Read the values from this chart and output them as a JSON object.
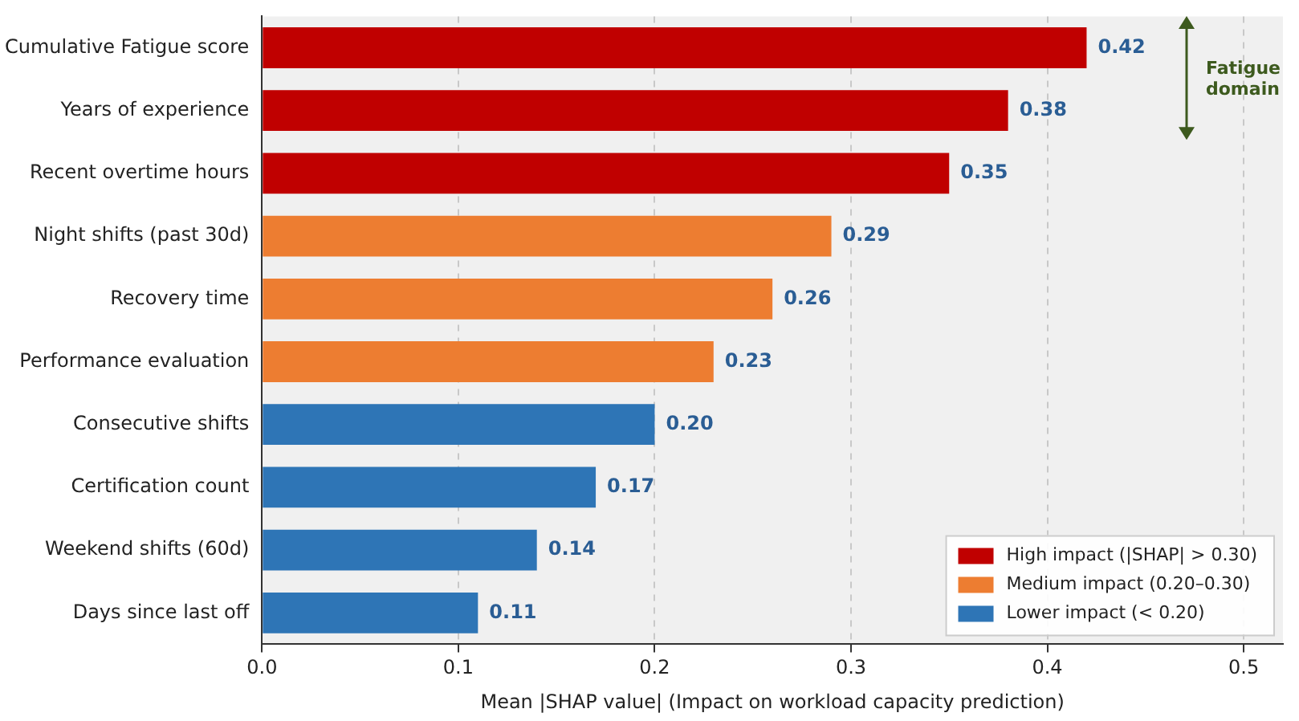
{
  "chart_data": {
    "type": "bar",
    "orientation": "horizontal",
    "categories": [
      "Cumulative Fatigue score",
      "Years of experience",
      "Recent overtime hours",
      "Night shifts (past 30d)",
      "Recovery time",
      "Performance evaluation",
      "Consecutive shifts",
      "Certification count",
      "Weekend shifts (60d)",
      "Days since last off"
    ],
    "series": [
      {
        "name": "High impact (|SHAP| > 0.30)",
        "color": "#c00000",
        "values": [
          0.42,
          0.38,
          0.35,
          null,
          null,
          null,
          null,
          null,
          null,
          null
        ],
        "value_labels": [
          "0.42",
          "0.38",
          "0.35",
          null,
          null,
          null,
          null,
          null,
          null,
          null
        ]
      },
      {
        "name": "Medium impact (0.20–0.30)",
        "color": "#ed7d31",
        "values": [
          null,
          null,
          null,
          0.29,
          0.26,
          0.23,
          null,
          null,
          null,
          null
        ],
        "value_labels": [
          null,
          null,
          null,
          "0.29",
          "0.26",
          "0.23",
          null,
          null,
          null,
          null
        ]
      },
      {
        "name": "Lower impact (< 0.20)",
        "color": "#2e75b6",
        "values": [
          null,
          null,
          null,
          null,
          null,
          null,
          0.2,
          0.17,
          0.14,
          0.11
        ],
        "value_labels": [
          null,
          null,
          null,
          null,
          null,
          null,
          "0.20",
          "0.17",
          "0.14",
          "0.11"
        ]
      }
    ],
    "xlim": [
      0,
      0.52
    ],
    "xticks": [
      {
        "value": 0,
        "label": "0.0"
      },
      {
        "value": 0.1,
        "label": "0.1"
      },
      {
        "value": 0.2,
        "label": "0.2"
      },
      {
        "value": 0.3,
        "label": "0.3"
      },
      {
        "value": 0.4,
        "label": "0.4"
      },
      {
        "value": 0.5,
        "label": "0.5"
      }
    ],
    "xlabel": "Mean |SHAP value| (Impact on workload capacity prediction)",
    "annotations": [
      "Fatigue domain"
    ],
    "grid": "x",
    "legend": "bottom right"
  }
}
